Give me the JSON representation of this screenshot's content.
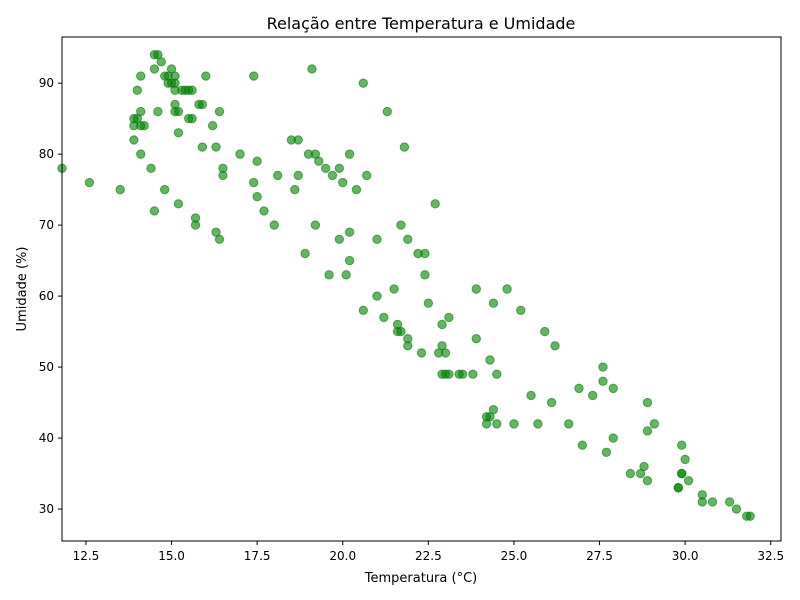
{
  "chart_data": {
    "type": "scatter",
    "title": "Relação entre Temperatura e Umidade",
    "xlabel": "Temperatura (°C)",
    "ylabel": "Umidade (%)",
    "xlim": [
      11.8,
      32.8
    ],
    "ylim": [
      25.5,
      96.5
    ],
    "xticks": [
      12.5,
      15.0,
      17.5,
      20.0,
      22.5,
      25.0,
      27.5,
      30.0,
      32.5
    ],
    "xtick_labels": [
      "12.5",
      "15.0",
      "17.5",
      "20.0",
      "22.5",
      "25.0",
      "27.5",
      "30.0",
      "32.5"
    ],
    "yticks": [
      30,
      40,
      50,
      60,
      70,
      80,
      90
    ],
    "ytick_labels": [
      "30",
      "40",
      "50",
      "60",
      "70",
      "80",
      "90"
    ],
    "grid": false,
    "marker_color": "#008000",
    "marker_alpha": 0.6,
    "points": [
      [
        11.8,
        78
      ],
      [
        12.6,
        76
      ],
      [
        13.5,
        75
      ],
      [
        13.9,
        85
      ],
      [
        13.9,
        84
      ],
      [
        13.9,
        82
      ],
      [
        14.0,
        89
      ],
      [
        14.0,
        85
      ],
      [
        14.1,
        91
      ],
      [
        14.1,
        86
      ],
      [
        14.1,
        84
      ],
      [
        14.1,
        80
      ],
      [
        14.2,
        84
      ],
      [
        14.4,
        78
      ],
      [
        14.5,
        94
      ],
      [
        14.5,
        92
      ],
      [
        14.5,
        72
      ],
      [
        14.6,
        94
      ],
      [
        14.6,
        86
      ],
      [
        14.7,
        93
      ],
      [
        14.8,
        91
      ],
      [
        14.8,
        75
      ],
      [
        14.9,
        91
      ],
      [
        14.9,
        90
      ],
      [
        15.0,
        92
      ],
      [
        15.0,
        90
      ],
      [
        15.1,
        91
      ],
      [
        15.1,
        90
      ],
      [
        15.1,
        89
      ],
      [
        15.1,
        87
      ],
      [
        15.1,
        86
      ],
      [
        15.2,
        86
      ],
      [
        15.2,
        83
      ],
      [
        15.2,
        73
      ],
      [
        15.3,
        89
      ],
      [
        15.4,
        89
      ],
      [
        15.5,
        89
      ],
      [
        15.5,
        85
      ],
      [
        15.6,
        89
      ],
      [
        15.6,
        85
      ],
      [
        15.7,
        71
      ],
      [
        15.7,
        70
      ],
      [
        15.8,
        87
      ],
      [
        15.9,
        87
      ],
      [
        15.9,
        81
      ],
      [
        16.0,
        91
      ],
      [
        16.2,
        84
      ],
      [
        16.3,
        81
      ],
      [
        16.3,
        69
      ],
      [
        16.4,
        86
      ],
      [
        16.4,
        68
      ],
      [
        16.5,
        78
      ],
      [
        16.5,
        77
      ],
      [
        17.0,
        80
      ],
      [
        17.4,
        91
      ],
      [
        17.4,
        76
      ],
      [
        17.5,
        79
      ],
      [
        17.5,
        74
      ],
      [
        17.7,
        72
      ],
      [
        18.0,
        70
      ],
      [
        18.1,
        77
      ],
      [
        18.5,
        82
      ],
      [
        18.6,
        75
      ],
      [
        18.7,
        82
      ],
      [
        18.7,
        77
      ],
      [
        18.9,
        66
      ],
      [
        19.0,
        80
      ],
      [
        19.1,
        92
      ],
      [
        19.2,
        80
      ],
      [
        19.2,
        70
      ],
      [
        19.3,
        79
      ],
      [
        19.5,
        78
      ],
      [
        19.6,
        63
      ],
      [
        19.7,
        77
      ],
      [
        19.9,
        78
      ],
      [
        19.9,
        68
      ],
      [
        20.0,
        76
      ],
      [
        20.1,
        63
      ],
      [
        20.2,
        80
      ],
      [
        20.2,
        69
      ],
      [
        20.2,
        65
      ],
      [
        20.4,
        75
      ],
      [
        20.6,
        90
      ],
      [
        20.6,
        58
      ],
      [
        20.7,
        77
      ],
      [
        21.0,
        68
      ],
      [
        21.0,
        60
      ],
      [
        21.2,
        57
      ],
      [
        21.3,
        86
      ],
      [
        21.5,
        61
      ],
      [
        21.6,
        56
      ],
      [
        21.6,
        55
      ],
      [
        21.7,
        70
      ],
      [
        21.7,
        55
      ],
      [
        21.8,
        81
      ],
      [
        21.9,
        68
      ],
      [
        21.9,
        54
      ],
      [
        21.9,
        53
      ],
      [
        22.2,
        66
      ],
      [
        22.3,
        52
      ],
      [
        22.4,
        66
      ],
      [
        22.4,
        63
      ],
      [
        22.5,
        59
      ],
      [
        22.7,
        73
      ],
      [
        22.8,
        52
      ],
      [
        22.9,
        56
      ],
      [
        22.9,
        53
      ],
      [
        22.9,
        49
      ],
      [
        23.0,
        52
      ],
      [
        23.0,
        49
      ],
      [
        23.1,
        57
      ],
      [
        23.1,
        49
      ],
      [
        23.4,
        49
      ],
      [
        23.5,
        49
      ],
      [
        23.8,
        49
      ],
      [
        23.9,
        61
      ],
      [
        23.9,
        54
      ],
      [
        24.2,
        43
      ],
      [
        24.2,
        42
      ],
      [
        24.3,
        51
      ],
      [
        24.3,
        43
      ],
      [
        24.4,
        59
      ],
      [
        24.4,
        44
      ],
      [
        24.5,
        49
      ],
      [
        24.5,
        42
      ],
      [
        24.8,
        61
      ],
      [
        25.0,
        42
      ],
      [
        25.2,
        58
      ],
      [
        25.5,
        46
      ],
      [
        25.7,
        42
      ],
      [
        25.9,
        55
      ],
      [
        26.1,
        45
      ],
      [
        26.2,
        53
      ],
      [
        26.6,
        42
      ],
      [
        26.9,
        47
      ],
      [
        27.0,
        39
      ],
      [
        27.3,
        46
      ],
      [
        27.6,
        50
      ],
      [
        27.6,
        48
      ],
      [
        27.7,
        38
      ],
      [
        27.9,
        47
      ],
      [
        27.9,
        40
      ],
      [
        28.4,
        35
      ],
      [
        28.7,
        35
      ],
      [
        28.8,
        36
      ],
      [
        28.9,
        45
      ],
      [
        28.9,
        41
      ],
      [
        28.9,
        34
      ],
      [
        29.1,
        42
      ],
      [
        29.8,
        33
      ],
      [
        29.8,
        33
      ],
      [
        29.9,
        39
      ],
      [
        29.9,
        35
      ],
      [
        29.9,
        35
      ],
      [
        30.0,
        37
      ],
      [
        30.1,
        34
      ],
      [
        30.5,
        32
      ],
      [
        30.5,
        31
      ],
      [
        30.8,
        31
      ],
      [
        31.3,
        31
      ],
      [
        31.5,
        30
      ],
      [
        31.8,
        29
      ],
      [
        31.9,
        29
      ]
    ]
  }
}
